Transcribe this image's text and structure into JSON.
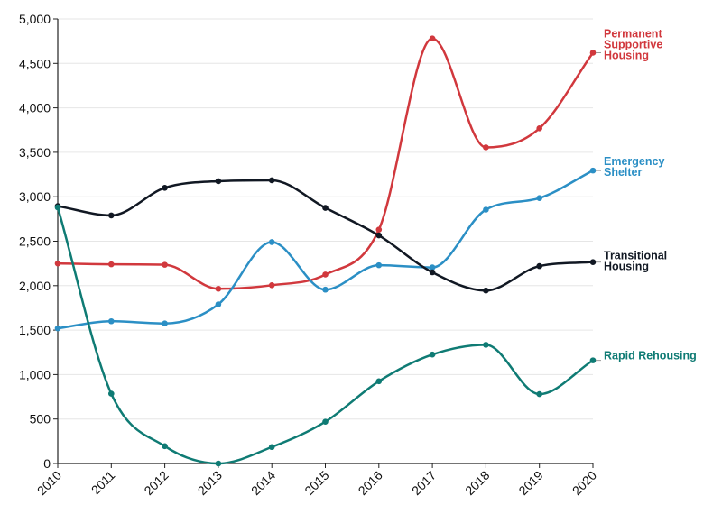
{
  "chart_data": {
    "type": "line",
    "title": "",
    "xlabel": "",
    "ylabel": "",
    "x": [
      "2010",
      "2011",
      "2012",
      "2013",
      "2014",
      "2015",
      "2016",
      "2017",
      "2018",
      "2019",
      "2020"
    ],
    "ylim": [
      0,
      5000
    ],
    "yticks": [
      0,
      500,
      1000,
      1500,
      2000,
      2500,
      3000,
      3500,
      4000,
      4500,
      5000
    ],
    "ytick_labels": [
      "0",
      "500",
      "1,000",
      "1,500",
      "2,000",
      "2,500",
      "3,000",
      "3,500",
      "4,000",
      "4,500",
      "5,000"
    ],
    "grid": "horizontal",
    "legend": "inline-right",
    "series": [
      {
        "name": "Permanent Supportive Housing",
        "label_lines": [
          "Permanent",
          "Supportive",
          "Housing"
        ],
        "color": "#d1383d",
        "values": [
          2250,
          2240,
          2235,
          1965,
          2005,
          2125,
          2630,
          4780,
          3555,
          3770,
          4620
        ]
      },
      {
        "name": "Emergency Shelter",
        "label_lines": [
          "Emergency",
          "Shelter"
        ],
        "color": "#2b8fc5",
        "values": [
          1520,
          1600,
          1575,
          1790,
          2490,
          1955,
          2230,
          2205,
          2855,
          2985,
          3295
        ]
      },
      {
        "name": "Transitional Housing",
        "label_lines": [
          "Transitional",
          "Housing"
        ],
        "color": "#111823",
        "values": [
          2895,
          2790,
          3100,
          3175,
          3185,
          2875,
          2565,
          2150,
          1945,
          2220,
          2265
        ]
      },
      {
        "name": "Rapid Rehousing",
        "label_lines": [
          "Rapid Rehousing"
        ],
        "color": "#0f7b74",
        "values": [
          2880,
          785,
          195,
          0,
          185,
          470,
          925,
          1225,
          1335,
          780,
          1160
        ]
      }
    ]
  }
}
